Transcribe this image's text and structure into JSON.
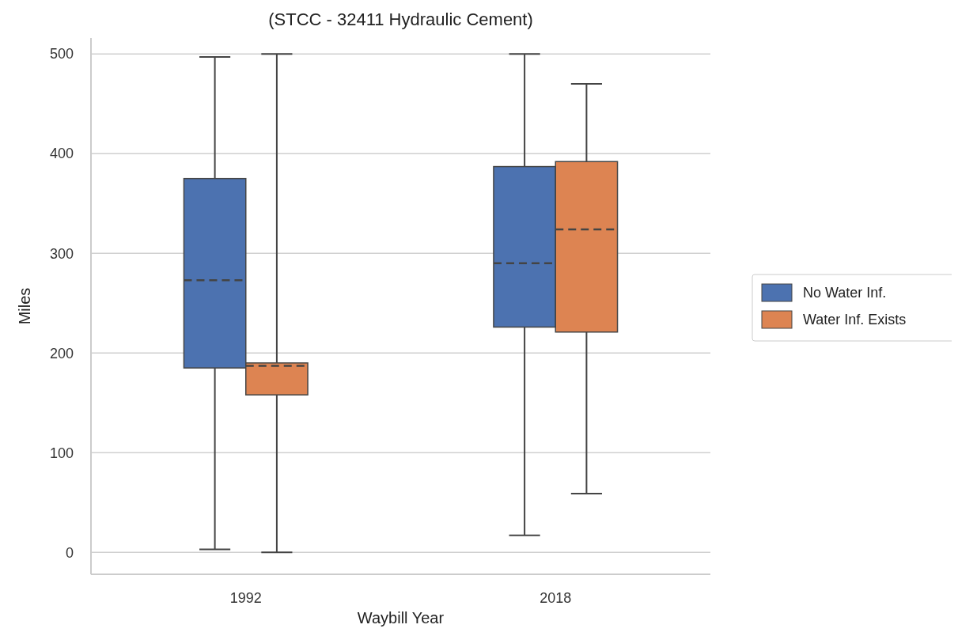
{
  "chart_data": {
    "type": "box",
    "title": "(STCC - 32411 Hydraulic Cement)",
    "xlabel": "Waybill Year",
    "ylabel": "Miles",
    "categories": [
      "1992",
      "2018"
    ],
    "series": [
      {
        "name": "No Water Inf.",
        "color": "#4c72b0",
        "boxes": [
          {
            "low": 3,
            "q1": 185,
            "median": 273,
            "q3": 375,
            "high": 497
          },
          {
            "low": 17,
            "q1": 226,
            "median": 290,
            "q3": 387,
            "high": 500
          }
        ]
      },
      {
        "name": "Water Inf. Exists",
        "color": "#dd8452",
        "boxes": [
          {
            "low": 0,
            "q1": 158,
            "median": 187,
            "q3": 190,
            "high": 500
          },
          {
            "low": 59,
            "q1": 221,
            "median": 324,
            "q3": 392,
            "high": 470
          }
        ]
      }
    ],
    "ylim": [
      -22,
      516
    ],
    "yticks": [
      0,
      100,
      200,
      300,
      400,
      500
    ],
    "grid": "y",
    "legend": "right"
  }
}
